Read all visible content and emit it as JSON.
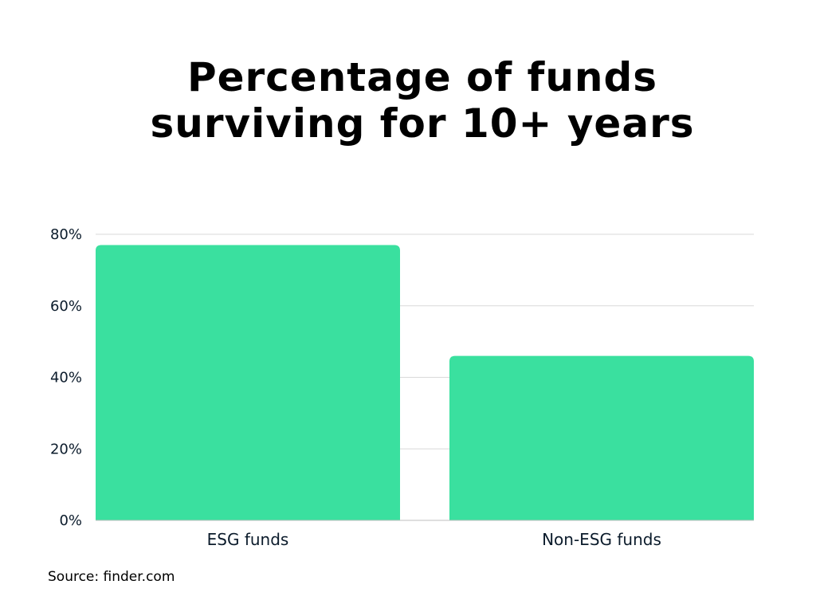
{
  "chart_data": {
    "type": "bar",
    "title_lines": [
      "Percentage of funds",
      "surviving for 10+ years"
    ],
    "categories": [
      "ESG funds",
      "Non-ESG funds"
    ],
    "values": [
      77,
      46
    ],
    "ylim": [
      0,
      80
    ],
    "yticks": [
      0,
      20,
      40,
      60,
      80
    ],
    "ytick_labels": [
      "0%",
      "20%",
      "40%",
      "60%",
      "80%"
    ],
    "xlabel": "",
    "ylabel": "",
    "grid": true,
    "legend": "none",
    "bar_color": "#3ae09f",
    "grid_color": "#d9d9d9"
  },
  "source": "Source: finder.com"
}
